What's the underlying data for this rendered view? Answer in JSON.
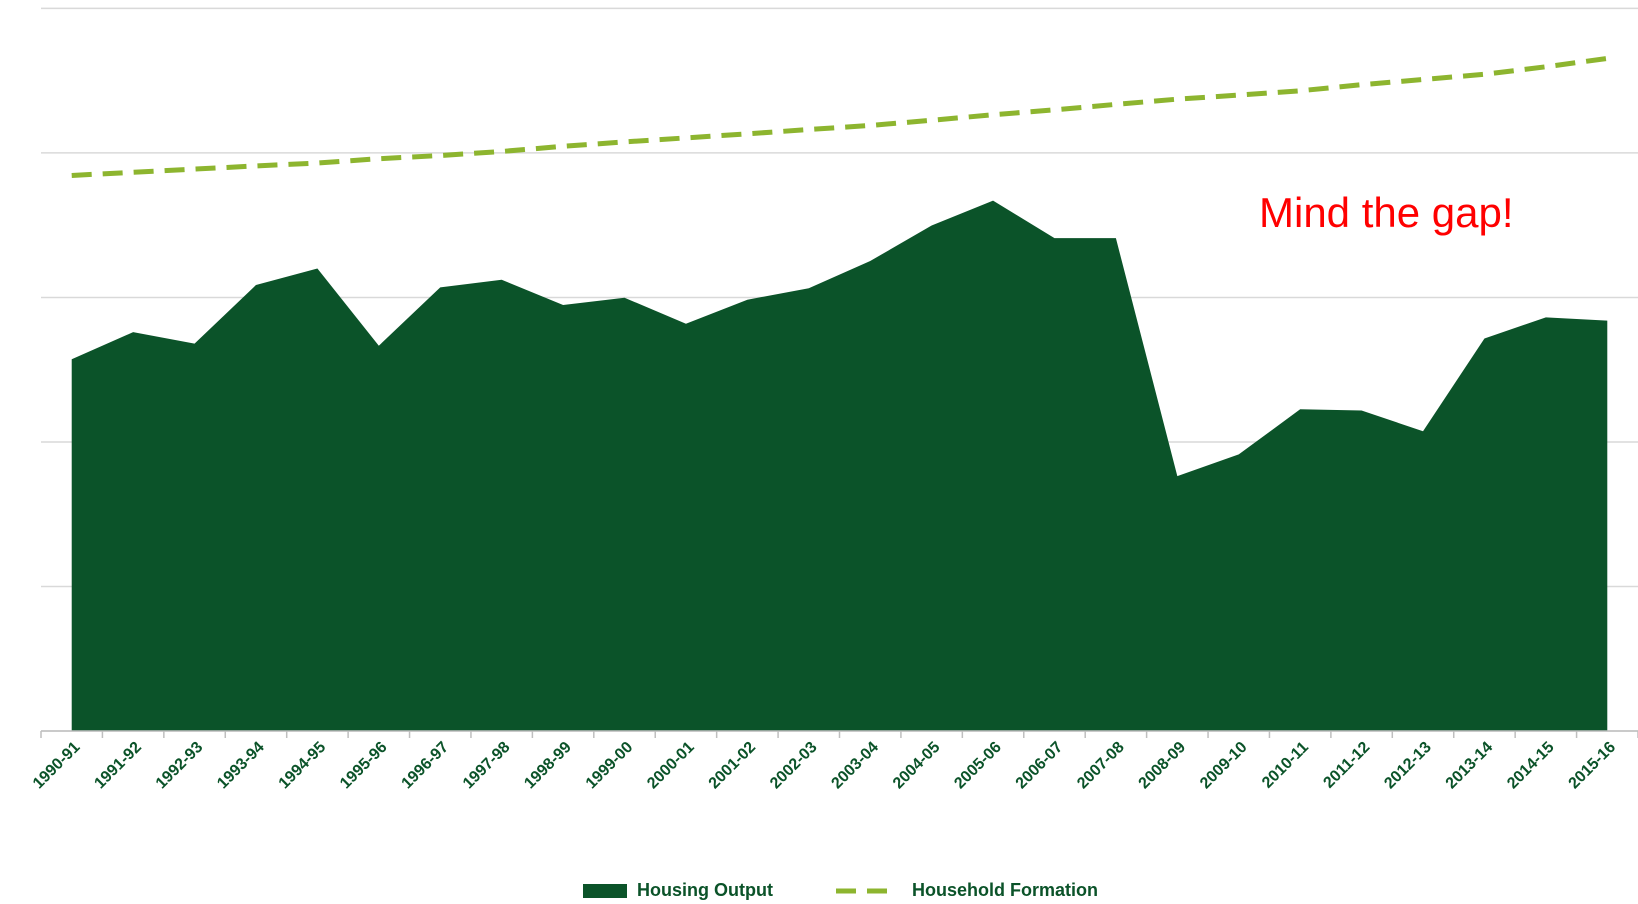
{
  "chart_data": {
    "type": "area-line",
    "annotation": "Mind the gap!",
    "categories": [
      "1990-91",
      "1991-92",
      "1992-93",
      "1993-94",
      "1994-95",
      "1995-96",
      "1996-97",
      "1997-98",
      "1998-99",
      "1999-00",
      "2000-01",
      "2001-02",
      "2002-03",
      "2003-04",
      "2004-05",
      "2005-06",
      "2006-07",
      "2007-08",
      "2008-09",
      "2009-10",
      "2010-11",
      "2011-12",
      "2012-13",
      "2013-14",
      "2014-15",
      "2015-16"
    ],
    "series": [
      {
        "name": "Housing Output",
        "color": "#0b5329",
        "style": "area",
        "values": [
          128.6,
          138.0,
          134.0,
          154.3,
          160.0,
          133.3,
          153.5,
          156.1,
          147.4,
          149.9,
          140.9,
          149.2,
          153.2,
          162.6,
          174.9,
          183.5,
          170.5,
          170.5,
          88.2,
          95.7,
          111.3,
          110.9,
          103.7,
          135.8,
          143.1,
          142.0
        ]
      },
      {
        "name": "Household Formation",
        "color": "#8db52f",
        "style": "dashed-line",
        "values": [
          192.2,
          193.3,
          194.4,
          195.5,
          196.5,
          198.0,
          199.1,
          200.5,
          202.3,
          203.8,
          205.2,
          206.6,
          208.1,
          209.5,
          211.3,
          213.2,
          214.9,
          216.8,
          218.6,
          220.0,
          221.5,
          223.6,
          225.4,
          227.2,
          229.8,
          232.7
        ]
      }
    ],
    "ylim": [
      0,
      250
    ],
    "yticks": [
      0,
      50,
      100,
      150,
      200,
      250
    ],
    "grid": true,
    "legend": "bottom"
  }
}
